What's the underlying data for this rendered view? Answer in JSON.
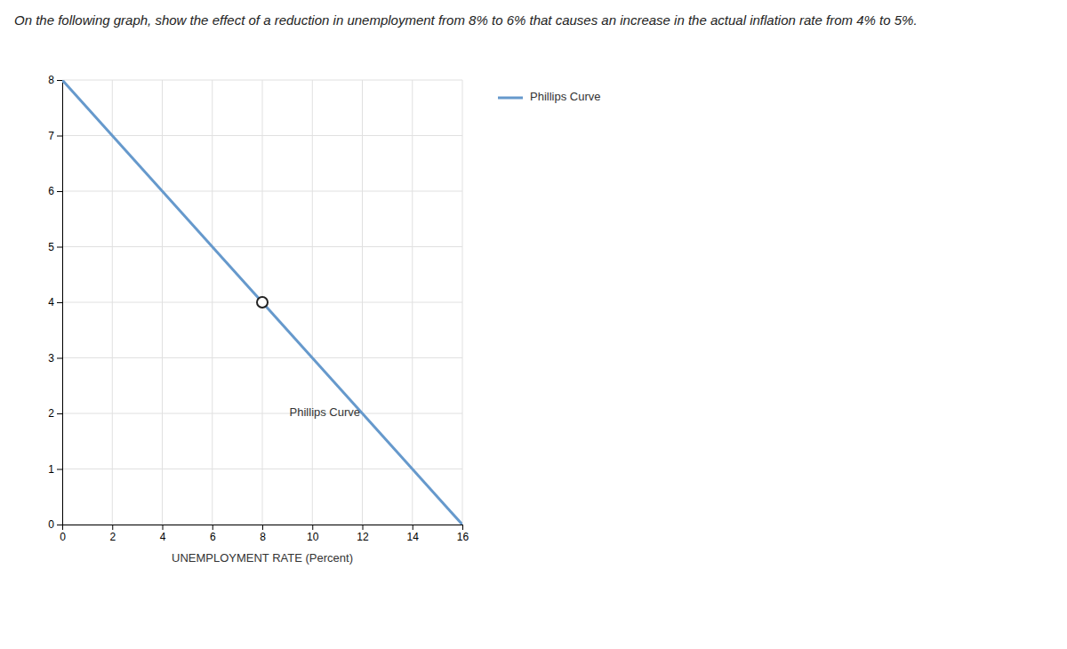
{
  "chart_data": {
    "type": "line",
    "title": "On the following graph, show the effect of a reduction in unemployment from 8% to 6% that causes an increase in the actual inflation rate from 4% to 5%.",
    "x_label": "UNEMPLOYMENT RATE (Percent)",
    "xlim": [
      0,
      16
    ],
    "ylim": [
      0,
      8
    ],
    "xticks": [
      0,
      2,
      4,
      6,
      8,
      10,
      12,
      14,
      16
    ],
    "yticks": [
      0,
      1,
      2,
      3,
      4,
      5,
      6,
      7,
      8
    ],
    "grid": true,
    "legend": "right",
    "series": [
      {
        "name": "Phillips Curve",
        "type": "line",
        "x": [
          0,
          16
        ],
        "values": [
          8,
          0
        ],
        "color": "#6699cc"
      },
      {
        "type": "scatter",
        "x": [
          8
        ],
        "values": [
          4
        ],
        "color": "#222222",
        "marker": "circle"
      }
    ],
    "annotations": [
      {
        "text": "Phillips Curve",
        "x": 10.5,
        "y": 2
      }
    ]
  }
}
